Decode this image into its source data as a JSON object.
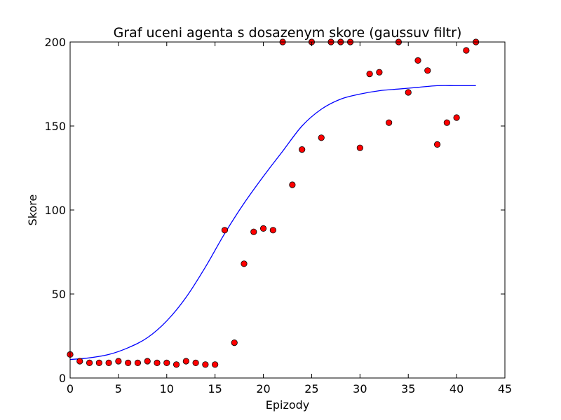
{
  "chart_data": {
    "type": "scatter",
    "title": "Graf uceni agenta s dosazenym skore (gaussuv filtr)",
    "xlabel": "Epizody",
    "ylabel": "Skore",
    "xlim": [
      0,
      45
    ],
    "ylim": [
      0,
      200
    ],
    "xticks": [
      0,
      5,
      10,
      15,
      20,
      25,
      30,
      35,
      40,
      45
    ],
    "yticks": [
      0,
      50,
      100,
      150,
      200
    ],
    "grid": false,
    "colors": {
      "points": "#ff0000",
      "point_edge": "#000000",
      "curve": "#0000ff"
    },
    "series": [
      {
        "kind": "points",
        "x": [
          0,
          1,
          2,
          3,
          4,
          5,
          6,
          7,
          8,
          9,
          10,
          11,
          12,
          13,
          14,
          15,
          16,
          17,
          18,
          19,
          20,
          21,
          22,
          23,
          24,
          25,
          26,
          27,
          28,
          29,
          30,
          31,
          32,
          33,
          34,
          35,
          36,
          37,
          38,
          39,
          40,
          41,
          42
        ],
        "y": [
          14,
          10,
          9,
          9,
          9,
          10,
          9,
          9,
          10,
          9,
          9,
          8,
          10,
          9,
          8,
          8,
          88,
          21,
          68,
          87,
          89,
          88,
          200,
          115,
          136,
          200,
          143,
          200,
          200,
          200,
          137,
          181,
          182,
          152,
          200,
          170,
          189,
          183,
          139,
          152,
          155,
          195,
          200
        ]
      },
      {
        "kind": "curve",
        "x": [
          0,
          2,
          4,
          6,
          8,
          10,
          12,
          14,
          16,
          18,
          20,
          22,
          24,
          26,
          28,
          30,
          32,
          34,
          36,
          38,
          40,
          42
        ],
        "y": [
          11,
          12,
          14,
          18,
          24,
          34,
          48,
          66,
          86,
          104,
          120,
          135,
          150,
          160,
          166,
          169,
          171,
          172,
          173,
          174,
          174,
          174
        ]
      }
    ]
  }
}
